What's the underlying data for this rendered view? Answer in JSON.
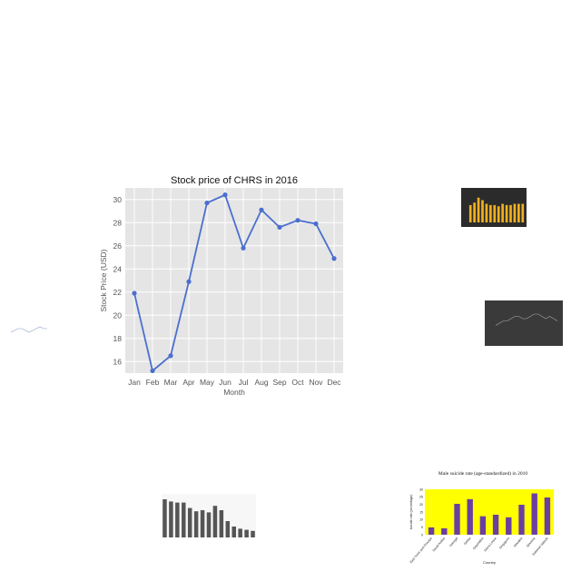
{
  "chart_data": [
    {
      "type": "line",
      "title": "Stock price of CHRS in 2016",
      "xlabel": "Month",
      "ylabel": "Stock Price (USD)",
      "categories": [
        "Jan",
        "Feb",
        "Mar",
        "Apr",
        "May",
        "Jun",
        "Jul",
        "Aug",
        "Sep",
        "Oct",
        "Nov",
        "Dec"
      ],
      "series": [
        {
          "values": [
            21.9,
            15.2,
            16.5,
            22.9,
            29.7,
            30.4,
            25.8,
            29.1,
            27.6,
            28.2,
            27.9,
            24.9
          ]
        }
      ],
      "ylim": [
        15,
        31
      ],
      "yticks": [
        16,
        18,
        20,
        22,
        24,
        26,
        28,
        30
      ],
      "grid": true,
      "colors": {
        "line": "#4a6fcf",
        "plot_bg": "#e5e5e5",
        "grid": "#ffffff"
      }
    },
    {
      "type": "bar",
      "title": "Male suicide rate (age-standardized) in 2010",
      "xlabel": "Country",
      "ylabel": "suicide rate (percentage)",
      "categories": [
        "East Timor and Principe",
        "Saudi Arabia",
        "Senegal",
        "Serbia",
        "Seychelles",
        "Sierra Leone",
        "Singapore",
        "Slovakia",
        "Slovenia",
        "Solomon Islands"
      ],
      "values": [
        4.8,
        4.2,
        20.4,
        23.5,
        12.2,
        13.2,
        11.5,
        19.8,
        27.3,
        24.6
      ],
      "ylim": [
        0,
        30
      ],
      "yticks": [
        0,
        5,
        10,
        15,
        20,
        25,
        30
      ],
      "colors": {
        "bar": "#6a3fa0",
        "plot_bg": "#ffff00"
      }
    },
    {
      "type": "bar",
      "values": [
        35,
        33,
        32,
        32,
        27,
        24,
        25,
        23,
        29,
        25,
        15,
        10,
        8,
        7,
        6
      ],
      "ylim": [
        0,
        40
      ],
      "colors": {
        "bar": "#555555"
      }
    },
    {
      "type": "bar",
      "values": [
        14,
        16,
        20,
        18,
        15,
        14,
        14,
        13,
        15,
        14,
        14,
        15,
        15,
        15
      ],
      "colors": {
        "bar": "#f0b020",
        "plot_bg": "#2b2b2b"
      }
    },
    {
      "type": "line",
      "values": [
        5,
        6,
        7,
        7,
        8,
        9,
        9,
        8,
        8,
        9,
        10,
        10,
        9,
        8,
        9,
        8,
        7
      ],
      "colors": {
        "line": "#888888",
        "plot_bg": "#3a3a3a"
      }
    },
    {
      "type": "line",
      "values": [
        4,
        5,
        6,
        6,
        5,
        4,
        5,
        6,
        7,
        6,
        6
      ],
      "colors": {
        "line": "#8aa0c8"
      }
    }
  ]
}
